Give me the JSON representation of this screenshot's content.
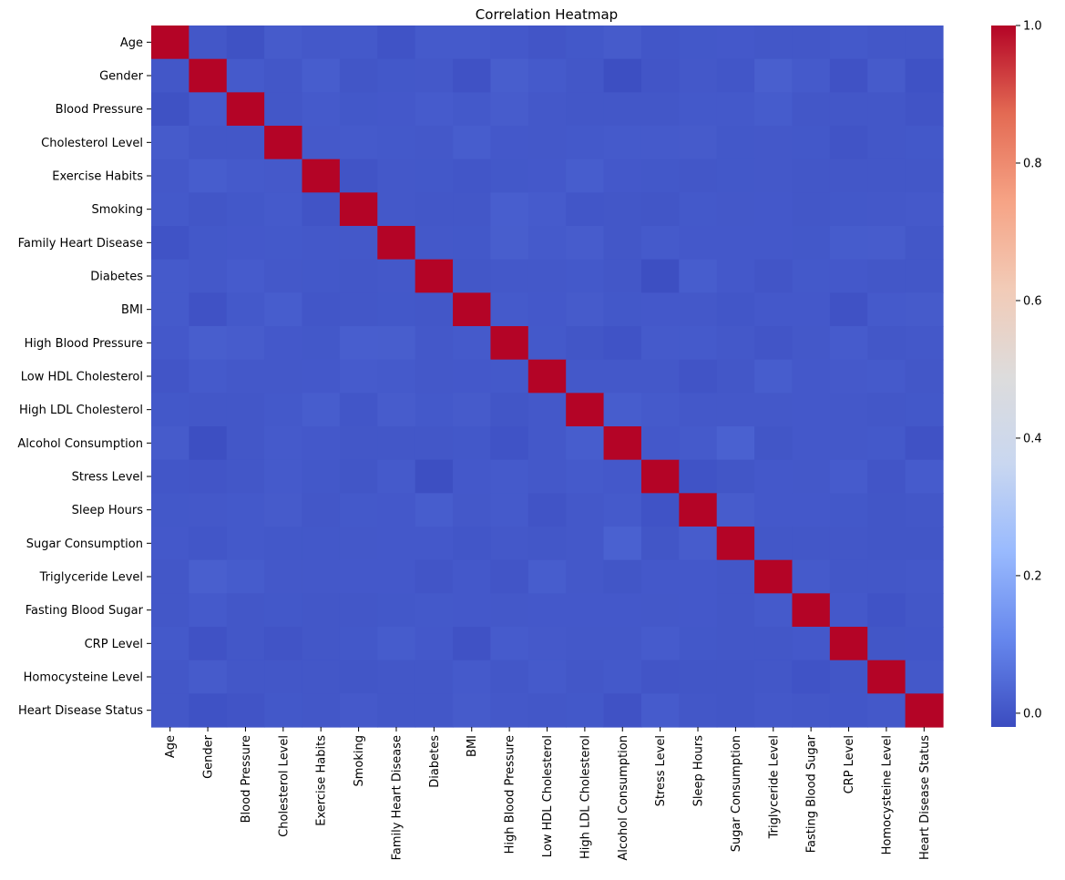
{
  "chart_data": {
    "type": "heatmap",
    "title": "Correlation Heatmap",
    "xlabel": "",
    "ylabel": "",
    "colormap": "coolwarm",
    "colormap_stops": [
      "#3b4cc0",
      "#6687ed",
      "#99bafe",
      "#c9d7f0",
      "#dddcdc",
      "#f2cbb7",
      "#f6a385",
      "#e36a53",
      "#b40426"
    ],
    "vmin": -0.02,
    "vmax": 1.0,
    "colorbar_ticks": [
      "0.0",
      "0.2",
      "0.4",
      "0.6",
      "0.8",
      "1.0"
    ],
    "colorbar_tick_values": [
      0.0,
      0.2,
      0.4,
      0.6,
      0.8,
      1.0
    ],
    "labels": [
      "Age",
      "Gender",
      "Blood Pressure",
      "Cholesterol Level",
      "Exercise Habits",
      "Smoking",
      "Family Heart Disease",
      "Diabetes",
      "BMI",
      "High Blood Pressure",
      "Low HDL Cholesterol",
      "High LDL Cholesterol",
      "Alcohol Consumption",
      "Stress Level",
      "Sleep Hours",
      "Sugar Consumption",
      "Triglyceride Level",
      "Fasting Blood Sugar",
      "CRP Level",
      "Homocysteine Level",
      "Heart Disease Status"
    ],
    "matrix": [
      [
        1.0,
        0.003,
        -0.008,
        0.012,
        0.006,
        0.008,
        -0.004,
        0.01,
        0.01,
        0.007,
        0.0,
        0.005,
        0.012,
        0.002,
        0.005,
        0.007,
        0.003,
        0.003,
        0.008,
        0.004,
        0.004
      ],
      [
        0.003,
        1.0,
        0.01,
        0.003,
        0.016,
        0.001,
        0.005,
        0.006,
        -0.006,
        0.018,
        0.011,
        0.003,
        -0.014,
        0.0,
        0.006,
        0.002,
        0.021,
        0.01,
        -0.006,
        0.012,
        -0.007
      ],
      [
        -0.008,
        0.01,
        1.0,
        0.004,
        0.01,
        0.005,
        0.007,
        0.013,
        0.008,
        0.015,
        0.006,
        0.003,
        0.003,
        0.003,
        0.008,
        0.008,
        0.014,
        0.003,
        0.003,
        0.004,
        -0.002
      ],
      [
        0.012,
        0.003,
        0.004,
        1.0,
        0.009,
        0.01,
        0.008,
        0.006,
        0.017,
        0.007,
        0.006,
        0.008,
        0.01,
        0.011,
        0.012,
        0.005,
        0.006,
        0.005,
        -0.003,
        0.004,
        0.005
      ],
      [
        0.006,
        0.016,
        0.01,
        0.009,
        1.0,
        -0.002,
        0.006,
        0.005,
        0.002,
        0.005,
        0.007,
        0.017,
        0.007,
        0.005,
        0.004,
        0.005,
        0.006,
        0.003,
        0.004,
        0.004,
        0.003
      ],
      [
        0.008,
        0.001,
        0.005,
        0.01,
        -0.002,
        1.0,
        0.006,
        0.003,
        0.003,
        0.019,
        0.013,
        0.002,
        0.003,
        0.001,
        0.008,
        0.006,
        0.007,
        0.004,
        0.005,
        0.006,
        0.009
      ],
      [
        -0.004,
        0.005,
        0.007,
        0.008,
        0.006,
        0.006,
        1.0,
        0.006,
        0.005,
        0.018,
        0.01,
        0.015,
        0.003,
        0.011,
        0.007,
        0.007,
        0.007,
        0.005,
        0.014,
        0.015,
        0.004
      ],
      [
        0.01,
        0.006,
        0.013,
        0.006,
        0.005,
        0.003,
        0.006,
        1.0,
        0.004,
        0.006,
        0.006,
        0.008,
        0.003,
        -0.014,
        0.016,
        0.007,
        0.0,
        0.008,
        0.007,
        0.004,
        0.004
      ],
      [
        0.01,
        -0.006,
        0.008,
        0.017,
        0.002,
        0.003,
        0.005,
        0.004,
        1.0,
        0.01,
        0.007,
        0.012,
        0.005,
        0.007,
        0.006,
        0.002,
        0.007,
        0.007,
        -0.006,
        0.01,
        0.012
      ],
      [
        0.007,
        0.018,
        0.015,
        0.007,
        0.005,
        0.019,
        0.018,
        0.006,
        0.01,
        1.0,
        0.008,
        0.001,
        -0.004,
        0.011,
        0.011,
        0.006,
        0.0,
        0.006,
        0.013,
        0.004,
        0.006
      ],
      [
        0.0,
        0.011,
        0.006,
        0.006,
        0.007,
        0.013,
        0.01,
        0.006,
        0.007,
        0.008,
        1.0,
        0.006,
        0.006,
        0.006,
        -0.002,
        0.003,
        0.017,
        0.007,
        0.009,
        0.01,
        0.003
      ],
      [
        0.005,
        0.003,
        0.003,
        0.008,
        0.017,
        0.002,
        0.015,
        0.008,
        0.012,
        0.001,
        0.006,
        1.0,
        0.017,
        0.01,
        0.006,
        0.006,
        0.006,
        0.007,
        0.006,
        0.004,
        0.005
      ],
      [
        0.012,
        -0.014,
        0.003,
        0.01,
        0.007,
        0.003,
        0.003,
        0.003,
        0.005,
        -0.004,
        0.006,
        0.017,
        1.0,
        0.007,
        0.011,
        0.025,
        0.001,
        0.007,
        0.006,
        0.008,
        -0.006
      ],
      [
        0.002,
        0.0,
        0.003,
        0.011,
        0.005,
        0.001,
        0.011,
        -0.014,
        0.007,
        0.011,
        0.006,
        0.01,
        0.007,
        1.0,
        -0.004,
        0.001,
        0.007,
        0.006,
        0.013,
        0.0,
        0.013
      ],
      [
        0.005,
        0.006,
        0.008,
        0.012,
        0.004,
        0.008,
        0.007,
        0.016,
        0.006,
        0.011,
        -0.002,
        0.006,
        0.011,
        -0.004,
        1.0,
        0.015,
        0.007,
        0.007,
        0.005,
        0.001,
        0.004
      ],
      [
        0.007,
        0.002,
        0.008,
        0.005,
        0.005,
        0.006,
        0.007,
        0.007,
        0.002,
        0.006,
        0.003,
        0.006,
        0.025,
        0.001,
        0.015,
        1.0,
        0.003,
        0.003,
        0.003,
        0.001,
        0.001
      ],
      [
        0.003,
        0.021,
        0.014,
        0.006,
        0.006,
        0.007,
        0.007,
        0.0,
        0.007,
        0.0,
        0.017,
        0.006,
        0.001,
        0.007,
        0.007,
        0.003,
        1.0,
        0.01,
        0.004,
        0.004,
        0.006
      ],
      [
        0.003,
        0.01,
        0.003,
        0.005,
        0.003,
        0.004,
        0.005,
        0.008,
        0.007,
        0.006,
        0.007,
        0.007,
        0.007,
        0.006,
        0.007,
        0.003,
        0.01,
        1.0,
        0.007,
        -0.004,
        0.003
      ],
      [
        0.008,
        -0.006,
        0.003,
        -0.003,
        0.004,
        0.005,
        0.014,
        0.007,
        -0.006,
        0.013,
        0.009,
        0.006,
        0.006,
        0.013,
        0.005,
        0.003,
        0.004,
        0.007,
        1.0,
        0.001,
        0.002
      ],
      [
        0.004,
        0.012,
        0.004,
        0.004,
        0.004,
        0.001,
        0.004,
        0.004,
        0.01,
        0.004,
        0.01,
        0.004,
        0.008,
        0.0,
        0.001,
        0.001,
        0.004,
        -0.004,
        0.001,
        1.0,
        0.006
      ],
      [
        0.004,
        -0.007,
        -0.002,
        0.005,
        0.003,
        0.009,
        0.004,
        0.004,
        0.012,
        0.006,
        0.003,
        0.005,
        -0.006,
        0.013,
        0.004,
        0.001,
        0.006,
        0.003,
        0.002,
        0.006,
        1.0
      ]
    ]
  }
}
